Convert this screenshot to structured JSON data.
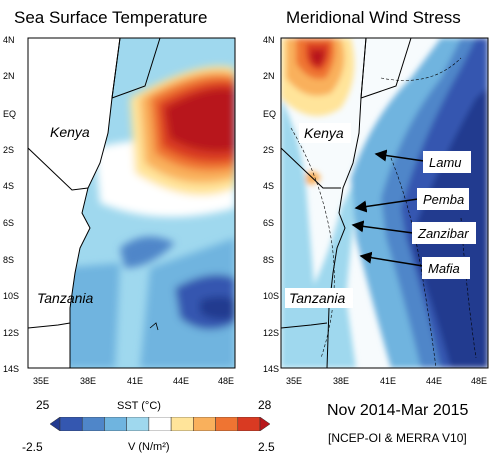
{
  "panels": [
    {
      "title": "Sea Surface Temperature"
    },
    {
      "title": "Meridional Wind Stress"
    }
  ],
  "axes": {
    "lat_labels": [
      "4N",
      "2N",
      "EQ",
      "2S",
      "4S",
      "6S",
      "8S",
      "10S",
      "12S",
      "14S"
    ],
    "lon_labels": [
      "35E",
      "38E",
      "41E",
      "44E",
      "48E"
    ]
  },
  "regions": {
    "kenya": "Kenya",
    "tanzania": "Tanzania"
  },
  "locations": [
    "Lamu",
    "Pemba",
    "Zanzibar",
    "Mafia"
  ],
  "colorbar": {
    "sst_min": "25",
    "sst_max": "28",
    "sst_label": "SST (°C)",
    "v_min": "-2.5",
    "v_max": "2.5",
    "v_label": "V (N/m²)",
    "colors": [
      "#223a8f",
      "#3457b0",
      "#4f86c9",
      "#6fb4df",
      "#9fd8ee",
      "#ffffff",
      "#ffe49a",
      "#f9b05c",
      "#ef7432",
      "#d93a22",
      "#b8171b"
    ]
  },
  "footer": {
    "period": "Nov 2014-Mar 2015",
    "source": "[NCEP-OI & MERRA V10]"
  }
}
